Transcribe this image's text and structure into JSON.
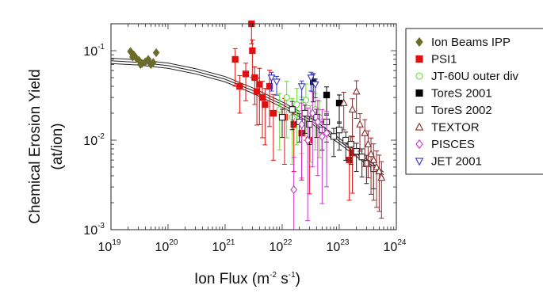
{
  "chart_data": {
    "type": "scatter",
    "title": "",
    "xlabel": "Ion Flux (m",
    "xlabel_unit_sup1": "-2",
    "xlabel_mid": " s",
    "xlabel_unit_sup2": "-1",
    "xlabel_end": ")",
    "ylabel_line1": "Chemical Erosion Yield",
    "ylabel_line2": "(at/ion)",
    "x_scale": "log",
    "y_scale": "log",
    "xlim": [
      1e+19,
      1e+24
    ],
    "ylim": [
      0.001,
      0.2
    ],
    "x_ticks": [
      {
        "base": "10",
        "exp": "19",
        "value": 1e+19
      },
      {
        "base": "10",
        "exp": "20",
        "value": 1e+20
      },
      {
        "base": "10",
        "exp": "21",
        "value": 1e+21
      },
      {
        "base": "10",
        "exp": "22",
        "value": 1e+22
      },
      {
        "base": "10",
        "exp": "23",
        "value": 1e+23
      },
      {
        "base": "10",
        "exp": "24",
        "value": 1e+24
      }
    ],
    "y_ticks": [
      {
        "base": "10",
        "exp": "-1",
        "value": 0.1
      },
      {
        "base": "10",
        "exp": "-2",
        "value": 0.01
      },
      {
        "base": "10",
        "exp": "-3",
        "value": 0.001
      }
    ],
    "grid": false,
    "legend_position": "outside-right",
    "fit_curve": {
      "x": [
        1e+19,
        3e+19,
        1e+20,
        3e+20,
        1e+21,
        3e+21,
        1e+22,
        3e+22,
        1e+23,
        3e+23,
        6e+23
      ],
      "y": [
        0.077,
        0.074,
        0.068,
        0.059,
        0.048,
        0.036,
        0.025,
        0.017,
        0.0098,
        0.0058,
        0.0041
      ],
      "band_factor": 1.07
    },
    "series": [
      {
        "name": "Ion Beams IPP",
        "marker": "diamond",
        "fill": true,
        "color": "#6b6b2a",
        "points": [
          [
            2.2e+19,
            0.098,
            0
          ],
          [
            2.5e+19,
            0.09,
            0
          ],
          [
            2.8e+19,
            0.082,
            0
          ],
          [
            3.1e+19,
            0.078,
            0
          ],
          [
            3.5e+19,
            0.072,
            0
          ],
          [
            4e+19,
            0.075,
            0
          ],
          [
            4.5e+19,
            0.08,
            0
          ],
          [
            5e+19,
            0.07,
            0
          ],
          [
            5.5e+19,
            0.074,
            0
          ],
          [
            6.2e+19,
            0.095,
            0
          ],
          [
            2.4e+19,
            0.085,
            0
          ],
          [
            3.3e+19,
            0.07,
            0
          ]
        ]
      },
      {
        "name": "PSI1",
        "marker": "square",
        "fill": true,
        "color": "#e01010",
        "points": [
          [
            1.5e+21,
            0.08,
            0.2
          ],
          [
            1.8e+21,
            0.04,
            0.2
          ],
          [
            2.3e+21,
            0.055,
            0.2
          ],
          [
            2.9e+21,
            0.2,
            0.15
          ],
          [
            3e+21,
            0.1,
            0.2
          ],
          [
            3.3e+21,
            0.05,
            0.2
          ],
          [
            3.6e+21,
            0.035,
            0.25
          ],
          [
            4e+21,
            0.042,
            0.3
          ],
          [
            4.5e+21,
            0.03,
            0.3
          ],
          [
            5e+21,
            0.025,
            0.3
          ],
          [
            6e+21,
            0.04,
            0.3
          ],
          [
            7e+21,
            0.02,
            0.35
          ],
          [
            1.1e+22,
            0.018,
            0.35
          ],
          [
            1.6e+22,
            0.015,
            0.35
          ],
          [
            2.2e+22,
            0.012,
            0.35
          ],
          [
            3e+22,
            0.01,
            0.4
          ],
          [
            1.5e+23,
            0.006,
            0.3
          ],
          [
            1.7e+23,
            0.0072,
            0.3
          ]
        ]
      },
      {
        "name": "JT-60U outer div",
        "marker": "circle",
        "fill": false,
        "color": "#66dd33",
        "points": [
          [
            9e+21,
            0.022,
            0.3
          ],
          [
            1.2e+22,
            0.03,
            0.3
          ],
          [
            1.5e+22,
            0.018,
            0.35
          ],
          [
            1.8e+22,
            0.025,
            0.3
          ],
          [
            2.2e+22,
            0.02,
            0.3
          ],
          [
            2.6e+22,
            0.028,
            0.3
          ],
          [
            3.1e+22,
            0.016,
            0.3
          ],
          [
            3.8e+22,
            0.022,
            0.3
          ],
          [
            4.5e+22,
            0.018,
            0.3
          ]
        ]
      },
      {
        "name": "ToreS 2001",
        "marker": "square",
        "fill": true,
        "color": "#000000",
        "points": [
          [
            3.5e+22,
            0.045,
            0.15
          ],
          [
            6e+22,
            0.032,
            0.15
          ],
          [
            1e+23,
            0.026,
            0.15
          ]
        ]
      },
      {
        "name": "ToreS 2002",
        "marker": "square",
        "fill": false,
        "color": "#222222",
        "points": [
          [
            1e+22,
            0.018,
            0.15
          ],
          [
            1.5e+22,
            0.022,
            0.15
          ],
          [
            2e+22,
            0.016,
            0.15
          ],
          [
            2.5e+22,
            0.02,
            0.15
          ],
          [
            3e+22,
            0.015,
            0.15
          ],
          [
            4e+22,
            0.018,
            0.15
          ],
          [
            5e+22,
            0.013,
            0.15
          ],
          [
            6e+22,
            0.016,
            0.15
          ],
          [
            8e+22,
            0.011,
            0.15
          ],
          [
            1e+23,
            0.013,
            0.15
          ],
          [
            1.3e+23,
            0.01,
            0.15
          ],
          [
            1.6e+23,
            0.009,
            0.15
          ],
          [
            2e+23,
            0.0075,
            0.15
          ],
          [
            2.5e+23,
            0.0065,
            0.15
          ],
          [
            3e+23,
            0.0055,
            0.15
          ],
          [
            4e+23,
            0.0048,
            0.15
          ]
        ]
      },
      {
        "name": "TEXTOR",
        "marker": "triangle-up",
        "fill": false,
        "color": "#8b2a2a",
        "points": [
          [
            1.2e+23,
            0.026,
            0.2
          ],
          [
            1.7e+23,
            0.022,
            0.2
          ],
          [
            2e+23,
            0.035,
            0.2
          ],
          [
            2.3e+23,
            0.015,
            0.2
          ],
          [
            2.8e+23,
            0.012,
            0.25
          ],
          [
            3.2e+23,
            0.009,
            0.25
          ],
          [
            3.6e+23,
            0.007,
            0.3
          ],
          [
            4e+23,
            0.006,
            0.3
          ],
          [
            4.5e+23,
            0.005,
            0.3
          ],
          [
            5e+23,
            0.0045,
            0.3
          ],
          [
            5.5e+23,
            0.0038,
            0.3
          ]
        ]
      },
      {
        "name": "PISCES",
        "marker": "diamond",
        "fill": false,
        "color": "#cc33cc",
        "points": [
          [
            1.6e+22,
            0.0028,
            0.6
          ],
          [
            2.2e+22,
            0.015,
            0.4
          ],
          [
            2.8e+22,
            0.01,
            0.6
          ],
          [
            3.4e+22,
            0.02,
            0.4
          ],
          [
            4.2e+22,
            0.016,
            0.4
          ],
          [
            5e+22,
            0.011,
            0.5
          ],
          [
            6e+22,
            0.012,
            0.4
          ]
        ]
      },
      {
        "name": "JET 2001",
        "marker": "triangle-down",
        "fill": false,
        "color": "#3333cc",
        "points": [
          [
            6.5e+21,
            0.05,
            0.1
          ],
          [
            8e+21,
            0.045,
            0.1
          ],
          [
            2.2e+22,
            0.04,
            0.1
          ],
          [
            3.2e+22,
            0.05,
            0.1
          ],
          [
            3.8e+22,
            0.042,
            0.1
          ]
        ]
      }
    ]
  }
}
